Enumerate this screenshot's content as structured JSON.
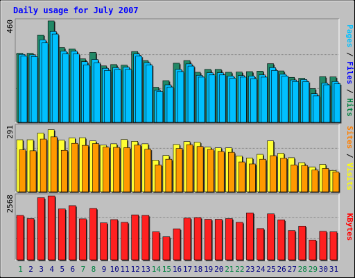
{
  "chart_data": {
    "type": "bar",
    "title": "Daily usage for July 2007",
    "categories": [
      "1",
      "2",
      "3",
      "4",
      "5",
      "6",
      "7",
      "8",
      "9",
      "10",
      "11",
      "12",
      "13",
      "14",
      "15",
      "16",
      "17",
      "18",
      "19",
      "20",
      "21",
      "22",
      "23",
      "24",
      "25",
      "26",
      "27",
      "28",
      "29",
      "30",
      "31"
    ],
    "weekend_days": [
      "1",
      "7",
      "8",
      "14",
      "15",
      "21",
      "22",
      "28",
      "29"
    ],
    "weekend_color": "#008040",
    "weekday_color": "#000080",
    "panels": [
      {
        "id": "top",
        "max_label": "460",
        "ylim": [
          0,
          460
        ],
        "axis_label": [
          {
            "text": "Pages",
            "color": "#00c0ff"
          },
          {
            "text": " / ",
            "color": "#000000"
          },
          {
            "text": "Files",
            "color": "#0000ff"
          },
          {
            "text": " / ",
            "color": "#000000"
          },
          {
            "text": "Hits",
            "color": "#008040"
          }
        ],
        "series": [
          {
            "name": "Hits",
            "color": "#228866",
            "values": [
              313,
              313,
              396,
              460,
              339,
              333,
              288,
              317,
              256,
              262,
              259,
              321,
              280,
              159,
              189,
              268,
              280,
              227,
              240,
              240,
              227,
              228,
              230,
              232,
              266,
              233,
              204,
              200,
              153,
              207,
              206
            ]
          },
          {
            "name": "Files",
            "color": "#00c0ff",
            "values": [
              308,
              306,
              374,
              412,
              323,
              323,
              275,
              285,
              245,
              248,
              250,
              310,
              270,
              145,
              170,
              240,
              265,
              213,
              225,
              225,
              210,
              212,
              210,
              215,
              248,
              218,
              192,
              194,
              130,
              178,
              185
            ]
          },
          {
            "name": "Pages",
            "color": "#00c0ff",
            "values": [
              300,
              298,
              360,
              400,
              310,
              310,
              260,
              270,
              235,
              240,
              240,
              300,
              260,
              140,
              160,
              230,
              255,
              205,
              215,
              215,
              200,
              205,
              198,
              205,
              235,
              210,
              185,
              185,
              120,
              170,
              175
            ]
          }
        ]
      },
      {
        "id": "mid",
        "max_label": "291",
        "ylim": [
          0,
          291
        ],
        "axis_label": [
          {
            "text": "Sites",
            "color": "#ff8000"
          },
          {
            "text": " / ",
            "color": "#000000"
          },
          {
            "text": "Visits",
            "color": "#ffff00"
          }
        ],
        "series": [
          {
            "name": "Visits",
            "color": "#ffff33",
            "values": [
              232,
              232,
              262,
              277,
              230,
              240,
              241,
              227,
              208,
              214,
              233,
              225,
              214,
              141,
              162,
              211,
              224,
              221,
              199,
              196,
              196,
              160,
              151,
              167,
              227,
              172,
              152,
              130,
              111,
              122,
              95
            ]
          },
          {
            "name": "Sites",
            "color": "#ff9900",
            "values": [
              187,
              183,
              235,
              245,
              185,
              216,
              207,
              215,
              199,
              198,
              197,
              208,
              190,
              120,
              145,
              193,
              210,
              202,
              189,
              180,
              176,
              133,
              124,
              145,
              161,
              150,
              120,
              117,
              97,
              104,
              89
            ]
          }
        ]
      },
      {
        "id": "bot",
        "max_label": "2568",
        "ylim": [
          0,
          2568
        ],
        "axis_label": [
          {
            "text": "KBytes",
            "color": "#ff0000"
          }
        ],
        "series": [
          {
            "name": "KBytes",
            "color": "#ff2020",
            "values": [
              1790,
              1660,
              2500,
              2568,
              2050,
              2180,
              1650,
              2070,
              1490,
              1620,
              1510,
              1810,
              1790,
              1130,
              930,
              1250,
              1680,
              1700,
              1630,
              1630,
              1660,
              1510,
              1890,
              1260,
              1850,
              1610,
              1180,
              1360,
              800,
              1150,
              1130
            ]
          }
        ]
      }
    ]
  }
}
